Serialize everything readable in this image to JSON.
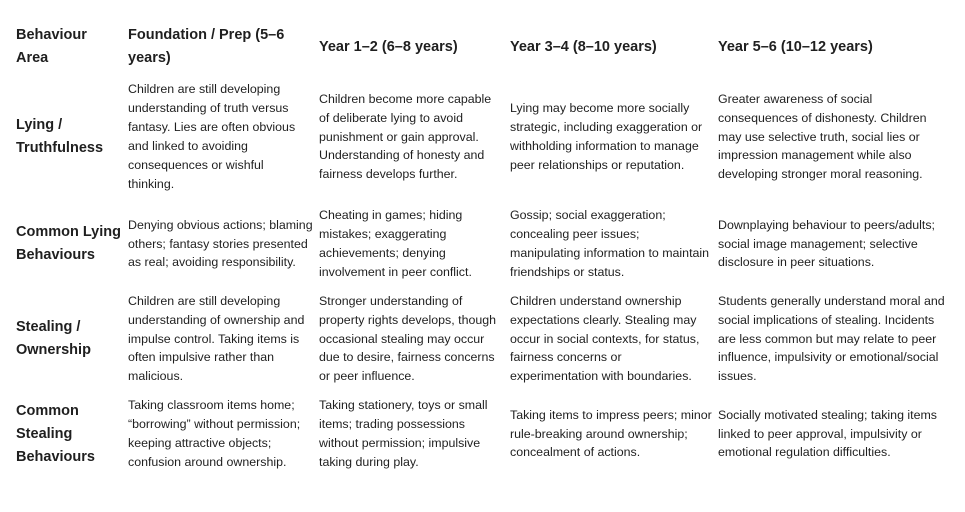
{
  "table": {
    "headers": [
      "Behaviour Area",
      "Foundation / Prep (5–6 years)",
      "Year 1–2 (6–8 years)",
      "Year 3–4 (8–10 years)",
      "Year 5–6 (10–12 years)"
    ],
    "rows": [
      {
        "area": "Lying / Truthfulness",
        "cells": [
          "Children are still developing understanding of truth versus fantasy. Lies are often obvious and linked to avoiding consequences or wishful thinking.",
          "Children become more capable of deliberate lying to avoid punishment or gain approval. Understanding of honesty and fairness develops further.",
          "Lying may become more socially strategic, including exaggeration or withholding information to manage peer relationships or reputation.",
          "Greater awareness of social consequences of dishonesty. Children may use selective truth, social lies or impression management while also developing stronger moral reasoning."
        ]
      },
      {
        "area": "Common Lying Behaviours",
        "cells": [
          "Denying obvious actions; blaming others; fantasy stories presented as real; avoiding responsibility.",
          "Cheating in games; hiding mistakes; exaggerating achievements; denying involvement in peer conflict.",
          "Gossip; social exaggeration; concealing peer issues; manipulating information to maintain friendships or status.",
          "Downplaying behaviour to peers/adults; social image management; selective disclosure in peer situations."
        ]
      },
      {
        "area": "Stealing / Ownership",
        "cells": [
          "Children are still developing understanding of ownership and impulse control. Taking items is often impulsive rather than malicious.",
          "Stronger understanding of property rights develops, though occasional stealing may occur due to desire, fairness concerns or peer influence.",
          "Children understand ownership expectations clearly. Stealing may occur in social contexts, for status, fairness concerns or experimentation with boundaries.",
          "Students generally understand moral and social implications of stealing. Incidents are less common but may relate to peer influence, impulsivity or emotional/social issues."
        ]
      },
      {
        "area": "Common Stealing Behaviours",
        "cells": [
          "Taking classroom items home; “borrowing” without permission; keeping attractive objects; confusion around ownership.",
          "Taking stationery, toys or small items; trading possessions without permission; impulsive taking during play.",
          "Taking items to impress peers; minor rule-breaking around ownership; concealment of actions.",
          "Socially motivated stealing; taking items linked to peer approval, impulsivity or emotional regulation difficulties."
        ]
      }
    ]
  }
}
